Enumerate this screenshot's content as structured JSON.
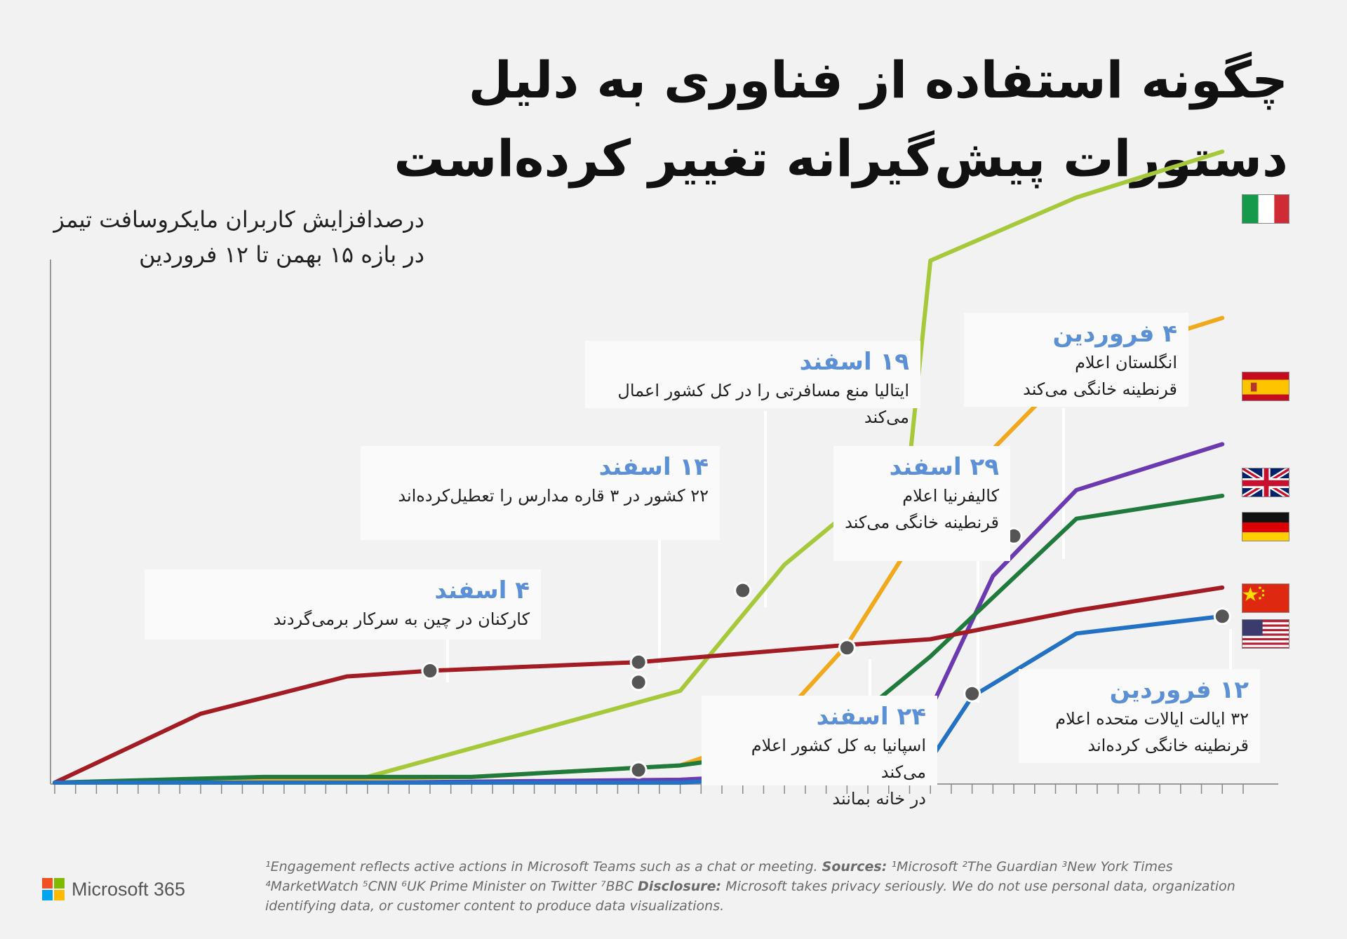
{
  "title_lines": [
    "چگونه استفاده از فناوری به دلیل",
    "دستورات پیش‌گیرانه تغییر کرده‌است"
  ],
  "chart_data": {
    "type": "line",
    "ylabel_lines": [
      "درصدافزایش کاربران مایکروسافت تیمز",
      "در بازه ۱۵ بهمن تا ۱۲ فروردین"
    ],
    "x_unit": "days since 15 Bahman",
    "xlim": [
      0,
      57
    ],
    "ylim": [
      0,
      100
    ],
    "grid": false,
    "series": [
      {
        "key": "italy",
        "color": "#a7c83b",
        "x": [
          0,
          7,
          15,
          20,
          30,
          35,
          41,
          42,
          49,
          56
        ],
        "y": [
          0,
          0.5,
          1,
          6,
          16,
          38,
          56,
          91,
          102,
          110
        ]
      },
      {
        "key": "spain",
        "color": "#f0a91c",
        "x": [
          0,
          10,
          20,
          30,
          34,
          38,
          42,
          49,
          56
        ],
        "y": [
          0,
          0.5,
          1,
          3,
          8,
          24,
          47,
          73,
          81
        ]
      },
      {
        "key": "uk",
        "color": "#6b3ab0",
        "x": [
          0,
          15,
          30,
          38,
          41,
          45,
          49,
          56
        ],
        "y": [
          0,
          0,
          0.5,
          2,
          5,
          36,
          51,
          59
        ]
      },
      {
        "key": "germany",
        "color": "#1f7a3c",
        "x": [
          0,
          10,
          20,
          30,
          34,
          38,
          42,
          49,
          56
        ],
        "y": [
          0,
          1,
          1,
          3,
          5,
          10,
          22,
          46,
          50
        ]
      },
      {
        "key": "china",
        "color": "#a31c24",
        "x": [
          0,
          7,
          14,
          18,
          28,
          38,
          42,
          49,
          56
        ],
        "y": [
          0,
          12,
          18.5,
          19.5,
          21,
          24,
          25,
          30,
          34
        ]
      },
      {
        "key": "usa",
        "color": "#2371c4",
        "x": [
          0,
          15,
          30,
          35,
          40,
          42,
          44,
          49,
          56
        ],
        "y": [
          0,
          0,
          0,
          1,
          2,
          4,
          15,
          26,
          29
        ]
      }
    ],
    "markers": [
      {
        "x": 18,
        "y": 19.5
      },
      {
        "x": 28,
        "y": 21
      },
      {
        "x": 28,
        "y": 17.5
      },
      {
        "x": 28,
        "y": 2.2
      },
      {
        "x": 33,
        "y": 33.5
      },
      {
        "x": 38,
        "y": 23.5
      },
      {
        "x": 44,
        "y": 15.5
      },
      {
        "x": 46,
        "y": 43
      },
      {
        "x": 56,
        "y": 29
      }
    ]
  },
  "annotations": [
    {
      "date": "۴ اسفند",
      "text": "کارکنان در چین به سرکار برمی‌گردند"
    },
    {
      "date": "۱۴ اسفند",
      "text": "۲۲ کشور در ۳ قاره مدارس را تعطیل‌کرده‌اند"
    },
    {
      "date": "۱۹ اسفند",
      "text": "ایتالیا منع مسافرتی را در کل کشور اعمال می‌کند"
    },
    {
      "date": "۲۴ اسفند",
      "text": "اسپانیا به کل کشور اعلام می‌کند\nدر خانه بمانند"
    },
    {
      "date": "۲۹ اسفند",
      "text": "کالیفرنیا اعلام\nقرنطینه خانگی می‌کند"
    },
    {
      "date": "۴ فروردین",
      "text": "انگلستان اعلام\nقرنطینه خانگی می‌کند"
    },
    {
      "date": "۱۲ فروردین",
      "text": "۳۲ ایالت ایالات متحده اعلام\nقرنطینه خانگی کرده‌اند"
    }
  ],
  "footer": {
    "line1_a": "¹Engagement reflects active actions in Microsoft Teams such as a chat or meeting. ",
    "sources_label": "Sources:",
    "line1_b": " ¹Microsoft ²The Guardian ³New York Times",
    "line2_a": "⁴MarketWatch ⁵CNN ⁶UK Prime Minister on Twitter ⁷BBC  ",
    "disclosure_label": "Disclosure:",
    "line2_b": " Microsoft takes privacy seriously. We do not use personal data, organization",
    "line3": "identifying data, or customer content to produce data visualizations."
  },
  "brand": {
    "name": "Microsoft 365",
    "logo_colors": [
      "#f25022",
      "#7fba00",
      "#00a4ef",
      "#ffb900"
    ]
  }
}
